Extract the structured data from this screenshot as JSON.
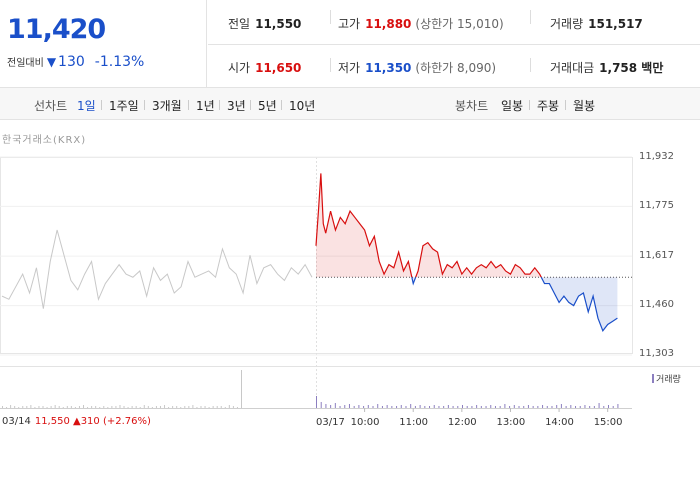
{
  "quote": {
    "price": "11,420",
    "change_label": "전일대비",
    "change_arrow": "▼",
    "change_amount": "130",
    "change_pct": "-1.13%"
  },
  "stats": {
    "prev_close_label": "전일",
    "prev_close": "11,550",
    "high_label": "고가",
    "high": "11,880",
    "upper_limit": "(상한가 15,010)",
    "volume_label": "거래량",
    "volume": "151,517",
    "open_label": "시가",
    "open": "11,650",
    "low_label": "저가",
    "low": "11,350",
    "lower_limit": "(하한가 8,090)",
    "value_label": "거래대금",
    "value": "1,758 백만"
  },
  "tabs": {
    "line_chart_label": "선차트",
    "periods": [
      "1일",
      "1주일",
      "3개월",
      "1년",
      "3년",
      "5년",
      "10년"
    ],
    "selected_period": "1일",
    "candle_chart_label": "봉차트",
    "candle_periods": [
      "일봉",
      "주봉",
      "월봉"
    ]
  },
  "source": "한국거래소(KRX)",
  "volume_legend": "거래량",
  "prev_day_info": {
    "date": "03/14",
    "text": "11,550 ▲310 (+2.76%)"
  },
  "colors": {
    "up": "#d80f0f",
    "down": "#1a4fc9",
    "prev_day_line": "#c8c8c8",
    "volume_bar": "#8c7fc0"
  },
  "chart_data": {
    "type": "line",
    "title": "",
    "ylim": [
      11303,
      11932
    ],
    "yticks": [
      "11,932",
      "11,775",
      "11,617",
      "11,460",
      "11,303"
    ],
    "ytick_values": [
      11932,
      11775,
      11617,
      11460,
      11303
    ],
    "reference_price": 11550,
    "xticks": [
      "03/14",
      "03/17",
      "10:00",
      "11:00",
      "12:00",
      "13:00",
      "14:00",
      "15:00"
    ],
    "x_time_labels": [
      "10:00",
      "11:00",
      "12:00",
      "13:00",
      "14:00",
      "15:00"
    ],
    "x_time_values": [
      10,
      11,
      12,
      13,
      14,
      15
    ],
    "time_range": [
      9,
      15.5
    ],
    "prev_day_series": {
      "name": "03/14",
      "values": [
        11490,
        11480,
        11520,
        11560,
        11500,
        11580,
        11450,
        11600,
        11700,
        11620,
        11540,
        11510,
        11560,
        11600,
        11480,
        11530,
        11560,
        11590,
        11560,
        11550,
        11570,
        11490,
        11580,
        11540,
        11560,
        11500,
        11520,
        11600,
        11550,
        11560,
        11570,
        11550,
        11640,
        11580,
        11560,
        11500,
        11620,
        11530,
        11580,
        11590,
        11560,
        11540,
        11580,
        11560,
        11590,
        11550
      ]
    },
    "series": [
      {
        "name": "03/17",
        "x": [
          9.0,
          9.05,
          9.1,
          9.15,
          9.2,
          9.3,
          9.4,
          9.5,
          9.6,
          9.7,
          9.8,
          9.9,
          10.0,
          10.1,
          10.2,
          10.3,
          10.4,
          10.5,
          10.6,
          10.7,
          10.8,
          10.9,
          11.0,
          11.1,
          11.2,
          11.3,
          11.4,
          11.5,
          11.6,
          11.7,
          11.8,
          11.9,
          12.0,
          12.1,
          12.2,
          12.3,
          12.4,
          12.5,
          12.6,
          12.7,
          12.8,
          12.9,
          13.0,
          13.1,
          13.2,
          13.3,
          13.4,
          13.5,
          13.6,
          13.7,
          13.8,
          13.9,
          14.0,
          14.1,
          14.2,
          14.3,
          14.4,
          14.5,
          14.6,
          14.7,
          14.8,
          14.9,
          15.0,
          15.1,
          15.2
        ],
        "values": [
          11650,
          11760,
          11880,
          11720,
          11690,
          11760,
          11700,
          11740,
          11720,
          11760,
          11740,
          11720,
          11700,
          11650,
          11680,
          11600,
          11560,
          11590,
          11580,
          11630,
          11570,
          11600,
          11530,
          11570,
          11650,
          11660,
          11640,
          11630,
          11560,
          11590,
          11580,
          11600,
          11560,
          11580,
          11560,
          11580,
          11590,
          11580,
          11600,
          11580,
          11590,
          11570,
          11560,
          11590,
          11580,
          11560,
          11560,
          11580,
          11560,
          11530,
          11530,
          11500,
          11470,
          11490,
          11470,
          11460,
          11490,
          11500,
          11440,
          11490,
          11420,
          11380,
          11400,
          11410,
          11420
        ]
      }
    ],
    "volume": {
      "prev_day": [
        2,
        1,
        3,
        2,
        1,
        2,
        2,
        3,
        1,
        2,
        2,
        1,
        2,
        3,
        2,
        1,
        2,
        2,
        1,
        2,
        3,
        1,
        2,
        2,
        1,
        2,
        1,
        2,
        2,
        3,
        2,
        1,
        2,
        2,
        1,
        3,
        2,
        1,
        2,
        2,
        3,
        1,
        2,
        2,
        1,
        2,
        2,
        3,
        1,
        2,
        2,
        1,
        2,
        2,
        2,
        1,
        3,
        2,
        1,
        38
      ],
      "today": [
        12,
        6,
        4,
        3,
        5,
        2,
        3,
        4,
        2,
        3,
        2,
        3,
        2,
        4,
        2,
        3,
        2,
        2,
        3,
        2,
        4,
        2,
        3,
        2,
        2,
        3,
        2,
        2,
        3,
        2,
        2,
        3,
        2,
        2,
        3,
        2,
        2,
        3,
        2,
        2,
        4,
        2,
        3,
        2,
        2,
        3,
        2,
        2,
        3,
        2,
        2,
        3,
        4,
        2,
        3,
        2,
        2,
        3,
        2,
        2,
        5,
        2,
        3,
        2,
        4
      ]
    }
  }
}
